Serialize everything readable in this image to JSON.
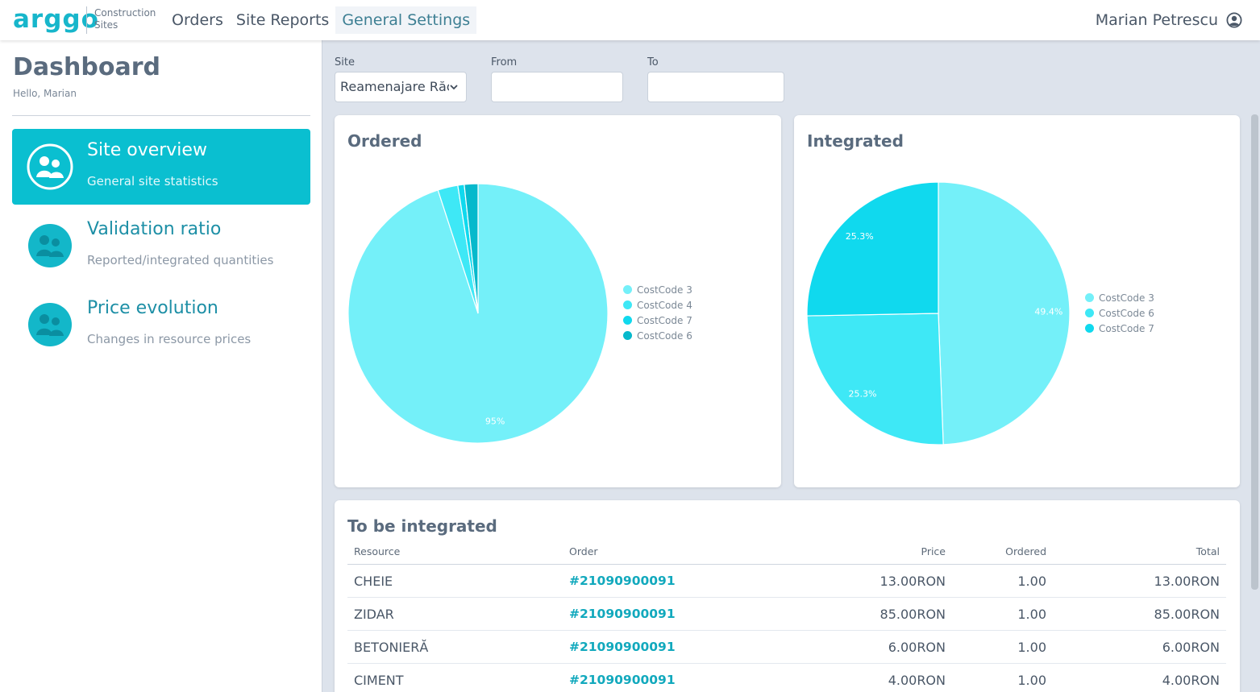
{
  "app": {
    "logo": "arggo",
    "logo_subtitle": "Construction Sites"
  },
  "nav": {
    "items": [
      {
        "label": "Orders",
        "active": false
      },
      {
        "label": "Site Reports",
        "active": false
      },
      {
        "label": "General Settings",
        "active": true
      }
    ]
  },
  "user": {
    "name": "Marian Petrescu",
    "icon": "user-circle-icon"
  },
  "sidebar": {
    "title": "Dashboard",
    "greeting": "Hello, Marian",
    "menu": [
      {
        "title": "Site overview",
        "subtitle": "General site statistics",
        "active": true,
        "icon": "users-avatar-icon"
      },
      {
        "title": "Validation ratio",
        "subtitle": "Reported/integrated quantities",
        "active": false,
        "icon": "users-avatar-icon"
      },
      {
        "title": "Price evolution",
        "subtitle": "Changes in resource prices",
        "active": false,
        "icon": "users-avatar-icon"
      }
    ]
  },
  "filters": {
    "site_label": "Site",
    "site_value": "Reamenajare Răc",
    "from_label": "From",
    "from_value": "",
    "to_label": "To",
    "to_value": ""
  },
  "colors": {
    "accent": "#0abfd0",
    "link": "#12a9bd",
    "costcode3": "#74f0f9",
    "costcode4": "#3ee8f6",
    "costcode7": "#10d9ee",
    "costcode6": "#06b9cc"
  },
  "chart_data": [
    {
      "type": "pie",
      "title": "Ordered",
      "labels": [
        "CostCode 3",
        "CostCode 4",
        "CostCode 7",
        "CostCode 6"
      ],
      "values": [
        95,
        2.5,
        0.8,
        1.7
      ],
      "slice_labels": [
        "95%",
        "",
        "",
        ""
      ],
      "colors": [
        "#74f0f9",
        "#3ee8f6",
        "#10d9ee",
        "#06b9cc"
      ],
      "legend": "right"
    },
    {
      "type": "pie",
      "title": "Integrated",
      "labels": [
        "CostCode 3",
        "CostCode 6",
        "CostCode 7"
      ],
      "values": [
        49.4,
        25.3,
        25.3
      ],
      "slice_labels": [
        "49.4%",
        "25.3%",
        "25.3%"
      ],
      "colors": [
        "#74f0f9",
        "#3ee8f6",
        "#10d9ee"
      ],
      "legend": "right"
    }
  ],
  "table": {
    "title": "To be integrated",
    "columns": [
      "Resource",
      "Order",
      "Price",
      "Ordered",
      "Total"
    ],
    "rows": [
      {
        "resource": "CHEIE",
        "order": "#21090900091",
        "price": "13.00RON",
        "ordered": "1.00",
        "total": "13.00RON"
      },
      {
        "resource": "ZIDAR",
        "order": "#21090900091",
        "price": "85.00RON",
        "ordered": "1.00",
        "total": "85.00RON"
      },
      {
        "resource": "BETONIERĂ",
        "order": "#21090900091",
        "price": "6.00RON",
        "ordered": "1.00",
        "total": "6.00RON"
      },
      {
        "resource": "CIMENT",
        "order": "#21090900091",
        "price": "4.00RON",
        "ordered": "1.00",
        "total": "4.00RON"
      }
    ]
  }
}
